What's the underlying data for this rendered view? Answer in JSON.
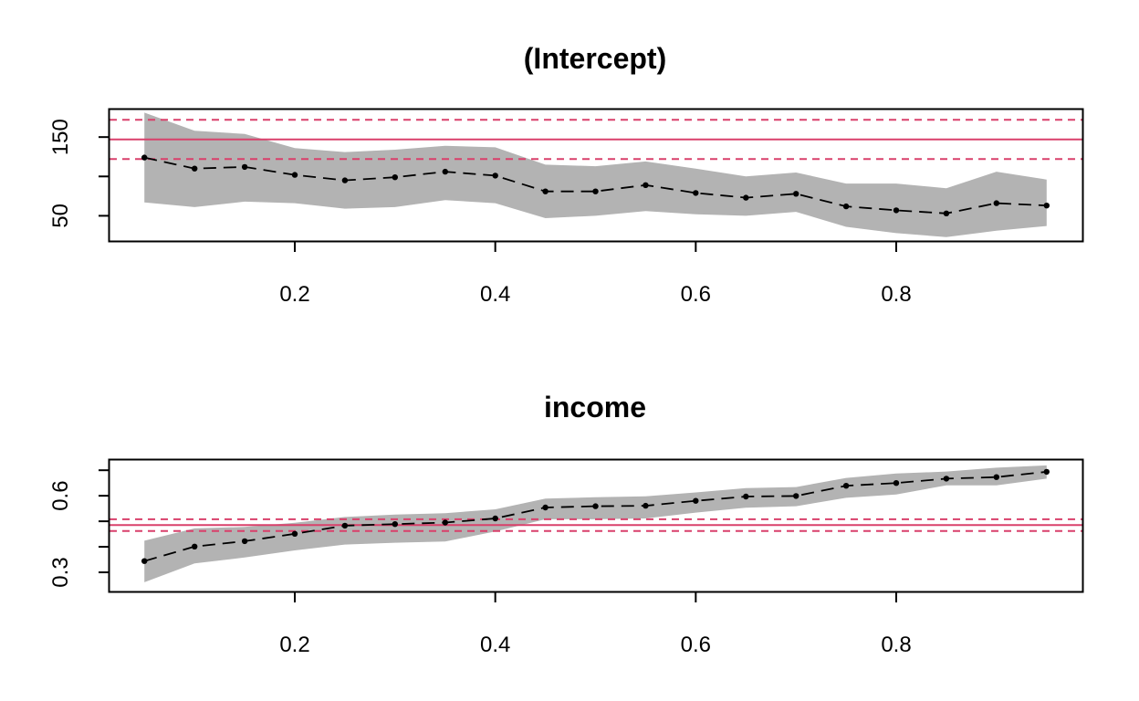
{
  "colors": {
    "band": "#b3b3b3",
    "ols": "#d9406b",
    "line": "#000000"
  },
  "chart_data": [
    {
      "type": "line",
      "title": "(Intercept)",
      "xlabel": "",
      "ylabel": "",
      "xlim": [
        0.05,
        0.95
      ],
      "ylim": [
        18,
        185
      ],
      "x_ticks": [
        {
          "value": 0.2,
          "label": "0.2"
        },
        {
          "value": 0.4,
          "label": "0.4"
        },
        {
          "value": 0.6,
          "label": "0.6"
        },
        {
          "value": 0.8,
          "label": "0.8"
        }
      ],
      "y_ticks": [
        {
          "value": 50,
          "label": "50"
        },
        {
          "value": 100,
          "label": ""
        },
        {
          "value": 150,
          "label": "150"
        }
      ],
      "x": [
        0.05,
        0.1,
        0.15,
        0.2,
        0.25,
        0.3,
        0.35,
        0.4,
        0.45,
        0.5,
        0.55,
        0.6,
        0.65,
        0.7,
        0.75,
        0.8,
        0.85,
        0.9,
        0.95
      ],
      "estimate": [
        124,
        110,
        112,
        102,
        95,
        99,
        106,
        101,
        81,
        81,
        89,
        79,
        73,
        78,
        62,
        57,
        53,
        66,
        63
      ],
      "lower": [
        67,
        61,
        68,
        66,
        59,
        61,
        70,
        66,
        47,
        50,
        56,
        52,
        50,
        55,
        36,
        28,
        23,
        31,
        37
      ],
      "upper": [
        181,
        158,
        154,
        136,
        131,
        134,
        139,
        137,
        115,
        113,
        119,
        110,
        100,
        105,
        91,
        91,
        85,
        106,
        96
      ],
      "ols_estimate": 147,
      "ols_ci": [
        122,
        172
      ],
      "grid": false,
      "legend": "none"
    },
    {
      "type": "line",
      "title": "income",
      "xlabel": "",
      "ylabel": "",
      "xlim": [
        0.05,
        0.95
      ],
      "ylim": [
        0.225,
        0.74
      ],
      "x_ticks": [
        {
          "value": 0.2,
          "label": "0.2"
        },
        {
          "value": 0.4,
          "label": "0.4"
        },
        {
          "value": 0.6,
          "label": "0.6"
        },
        {
          "value": 0.8,
          "label": "0.8"
        }
      ],
      "y_ticks": [
        {
          "value": 0.3,
          "label": "0.3"
        },
        {
          "value": 0.4,
          "label": ""
        },
        {
          "value": 0.5,
          "label": ""
        },
        {
          "value": 0.6,
          "label": "0.6"
        },
        {
          "value": 0.7,
          "label": ""
        }
      ],
      "x": [
        0.05,
        0.1,
        0.15,
        0.2,
        0.25,
        0.3,
        0.35,
        0.4,
        0.45,
        0.5,
        0.55,
        0.6,
        0.65,
        0.7,
        0.75,
        0.8,
        0.85,
        0.9,
        0.95
      ],
      "estimate": [
        0.344,
        0.401,
        0.422,
        0.451,
        0.483,
        0.489,
        0.495,
        0.511,
        0.554,
        0.559,
        0.561,
        0.58,
        0.597,
        0.599,
        0.639,
        0.65,
        0.667,
        0.673,
        0.694
      ],
      "lower": [
        0.261,
        0.335,
        0.358,
        0.386,
        0.409,
        0.416,
        0.421,
        0.46,
        0.508,
        0.508,
        0.511,
        0.534,
        0.553,
        0.559,
        0.592,
        0.605,
        0.641,
        0.641,
        0.667
      ],
      "upper": [
        0.424,
        0.472,
        0.478,
        0.494,
        0.517,
        0.526,
        0.532,
        0.547,
        0.589,
        0.594,
        0.598,
        0.613,
        0.63,
        0.634,
        0.67,
        0.687,
        0.695,
        0.71,
        0.719
      ],
      "ols_estimate": 0.485,
      "ols_ci": [
        0.462,
        0.508
      ],
      "grid": false,
      "legend": "none"
    }
  ]
}
